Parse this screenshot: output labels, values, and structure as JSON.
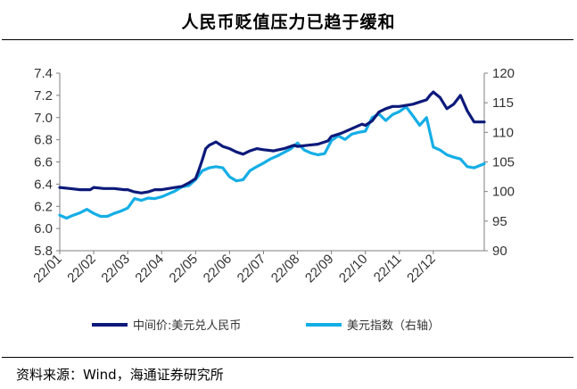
{
  "title": "人民币贬值压力已趋于缓和",
  "source": "资料来源：Wind，海通证券研究所",
  "colors": {
    "series1": "#0d1a7a",
    "series2": "#14aee6",
    "axis": "#7f7f7f",
    "text": "#333333"
  },
  "chart_data": {
    "type": "line",
    "title": "人民币贬值压力已趋于缓和",
    "xlabel": "",
    "ylabel": "",
    "y_left": {
      "min": 5.8,
      "max": 7.4,
      "ticks": [
        "5.8",
        "6.0",
        "6.2",
        "6.4",
        "6.6",
        "6.8",
        "7.0",
        "7.2",
        "7.4"
      ]
    },
    "y_right": {
      "min": 90,
      "max": 120,
      "ticks": [
        "90",
        "95",
        "100",
        "105",
        "110",
        "115",
        "120"
      ]
    },
    "x_categories": [
      "22/01",
      "22/02",
      "22/03",
      "22/04",
      "22/05",
      "22/06",
      "22/07",
      "22/08",
      "22/09",
      "22/10",
      "22/11",
      "22/12"
    ],
    "grid": false,
    "legend_position": "bottom",
    "series": [
      {
        "name": "中间价:美元兑人民币",
        "axis": "left",
        "color": "#0d1a7a",
        "x": [
          0,
          0.3,
          0.6,
          0.9,
          1.0,
          1.3,
          1.6,
          1.9,
          2.0,
          2.2,
          2.4,
          2.6,
          2.8,
          3.0,
          3.2,
          3.4,
          3.6,
          3.8,
          4.0,
          4.1,
          4.2,
          4.3,
          4.4,
          4.6,
          4.8,
          5.0,
          5.2,
          5.4,
          5.6,
          5.8,
          6.0,
          6.3,
          6.6,
          6.9,
          7.0,
          7.3,
          7.6,
          7.9,
          8.0,
          8.3,
          8.6,
          8.9,
          9.0,
          9.2,
          9.4,
          9.6,
          9.8,
          10.0,
          10.2,
          10.4,
          10.6,
          10.8,
          10.9,
          11.0,
          11.2,
          11.4,
          11.6,
          11.8,
          12.0,
          12.2,
          12.5
        ],
        "values": [
          6.37,
          6.36,
          6.35,
          6.35,
          6.37,
          6.36,
          6.36,
          6.35,
          6.35,
          6.33,
          6.32,
          6.33,
          6.35,
          6.35,
          6.36,
          6.37,
          6.38,
          6.41,
          6.45,
          6.53,
          6.62,
          6.72,
          6.75,
          6.78,
          6.74,
          6.72,
          6.69,
          6.67,
          6.7,
          6.72,
          6.71,
          6.7,
          6.72,
          6.75,
          6.74,
          6.75,
          6.76,
          6.79,
          6.83,
          6.86,
          6.9,
          6.94,
          6.93,
          6.97,
          7.05,
          7.08,
          7.1,
          7.1,
          7.11,
          7.12,
          7.14,
          7.16,
          7.2,
          7.23,
          7.18,
          7.08,
          7.12,
          7.2,
          7.06,
          6.96,
          6.96
        ]
      },
      {
        "name": "美元指数（右轴）",
        "axis": "right",
        "color": "#14aee6",
        "x": [
          0,
          0.2,
          0.4,
          0.6,
          0.8,
          1.0,
          1.2,
          1.4,
          1.6,
          1.8,
          2.0,
          2.2,
          2.4,
          2.6,
          2.8,
          3.0,
          3.2,
          3.4,
          3.6,
          3.8,
          4.0,
          4.2,
          4.4,
          4.6,
          4.8,
          5.0,
          5.2,
          5.4,
          5.6,
          5.8,
          6.0,
          6.2,
          6.4,
          6.6,
          6.8,
          7.0,
          7.2,
          7.4,
          7.6,
          7.8,
          8.0,
          8.2,
          8.4,
          8.6,
          8.8,
          9.0,
          9.2,
          9.4,
          9.6,
          9.8,
          10.0,
          10.2,
          10.4,
          10.6,
          10.8,
          11.0,
          11.2,
          11.4,
          11.6,
          11.8,
          12.0,
          12.2,
          12.5
        ],
        "values": [
          96.0,
          95.5,
          96.0,
          96.4,
          97.0,
          96.3,
          95.8,
          95.8,
          96.3,
          96.7,
          97.2,
          98.8,
          98.5,
          98.9,
          98.8,
          99.1,
          99.6,
          100.1,
          100.8,
          101.0,
          102.0,
          103.5,
          104.0,
          104.2,
          104.0,
          102.5,
          101.8,
          102.0,
          103.5,
          104.2,
          104.8,
          105.5,
          106.0,
          106.6,
          107.2,
          108.2,
          107.0,
          106.5,
          106.2,
          106.4,
          108.6,
          109.4,
          108.8,
          109.7,
          110.0,
          110.2,
          112.5,
          113.1,
          112.0,
          113.0,
          113.5,
          114.3,
          112.8,
          111.2,
          112.5,
          107.5,
          107.0,
          106.2,
          105.8,
          105.5,
          104.2,
          104.0,
          104.7
        ]
      }
    ]
  }
}
